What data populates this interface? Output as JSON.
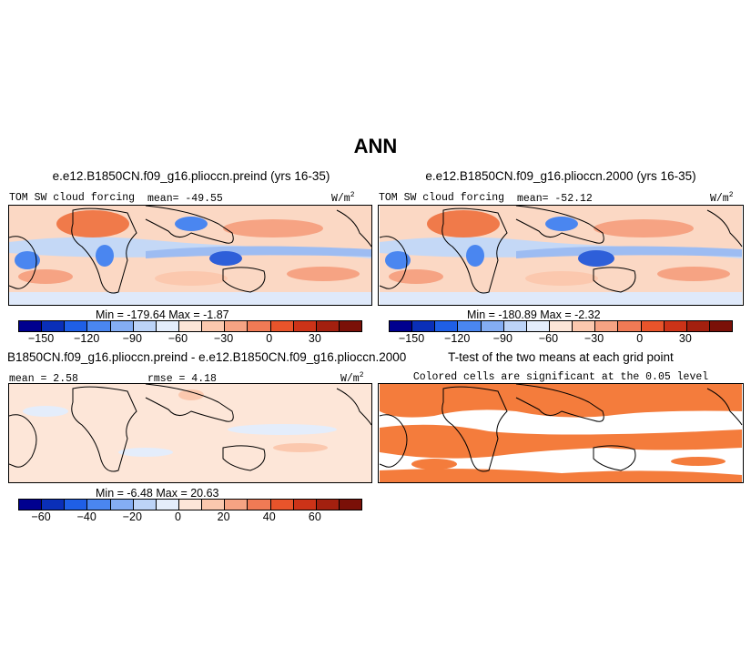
{
  "figure": {
    "title": "ANN"
  },
  "panels": {
    "preind": {
      "title": "e.e12.B1850CN.f09_g16.plioccn.preind (yrs 16-35)",
      "variable": "TOM SW cloud forcing",
      "mean_text": "mean= -49.55",
      "units_base": "W/m",
      "units_exp": "2",
      "stats_text": "Min = -179.64 Max = -1.87"
    },
    "p2000": {
      "title": "e.e12.B1850CN.f09_g16.plioccn.2000 (yrs 16-35)",
      "variable": "TOM SW cloud forcing",
      "mean_text": "mean= -52.12",
      "units_base": "W/m",
      "units_exp": "2",
      "stats_text": "Min = -180.89 Max = -2.32"
    },
    "diff": {
      "title": "B1850CN.f09_g16.plioccn.preind - e.e12.B1850CN.f09_g16.plioccn.2000",
      "mean_text": "mean = 2.58",
      "rmse_text": "rmse = 4.18",
      "units_base": "W/m",
      "units_exp": "2",
      "stats_text": "Min = -6.48 Max = 20.63"
    },
    "ttest": {
      "title": "T-test of the two means at each grid point",
      "subtitle": "Colored cells are significant at the 0.05 level"
    }
  },
  "colorbars": {
    "main": {
      "colors": [
        "#00008f",
        "#0a2fb8",
        "#1f5fe6",
        "#4a86f0",
        "#84adf3",
        "#bcd3f7",
        "#e4edfb",
        "#fde6d8",
        "#fbc8ae",
        "#f6a383",
        "#f07a55",
        "#e8542b",
        "#cc3318",
        "#a3200f",
        "#7a1008"
      ],
      "ticks": [
        "-150",
        "-120",
        "-90",
        "-60",
        "-30",
        "0",
        "30"
      ]
    },
    "diff": {
      "colors": [
        "#00008f",
        "#0a2fb8",
        "#1f5fe6",
        "#4a86f0",
        "#84adf3",
        "#bcd3f7",
        "#e4edfb",
        "#fde6d8",
        "#fbc8ae",
        "#f6a383",
        "#f07a55",
        "#e8542b",
        "#cc3318",
        "#a3200f",
        "#7a1008"
      ],
      "ticks": [
        "-60",
        "-40",
        "-20",
        "0",
        "20",
        "40",
        "60"
      ]
    }
  },
  "palette": {
    "land_orange": "#f07a4a",
    "ocean_light_orange": "#fbd1bb",
    "pale_orange": "#fde6d8",
    "light_blue": "#c4d8f6",
    "mid_blue": "#7ea6ee",
    "deep_blue": "#2e5fd9",
    "sig_orange": "#f47c3c"
  }
}
